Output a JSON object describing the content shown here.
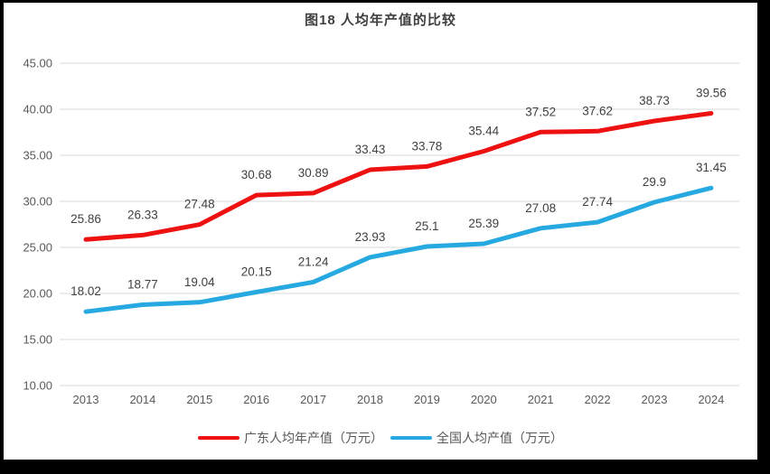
{
  "chart_data": {
    "type": "line",
    "title": "图18 人均年产值的比较",
    "categories": [
      "2013",
      "2014",
      "2015",
      "2016",
      "2017",
      "2018",
      "2019",
      "2020",
      "2021",
      "2022",
      "2023",
      "2024"
    ],
    "series": [
      {
        "name": "广东人均年产值（万元）",
        "color": "#ee1111",
        "values": [
          25.86,
          26.33,
          27.48,
          30.68,
          30.89,
          33.43,
          33.78,
          35.44,
          37.52,
          37.62,
          38.73,
          39.56
        ]
      },
      {
        "name": "全国人均产值（万元）",
        "color": "#25a9e0",
        "values": [
          18.02,
          18.77,
          19.04,
          20.15,
          21.24,
          23.93,
          25.1,
          25.39,
          27.08,
          27.74,
          29.9,
          31.45
        ]
      }
    ],
    "ylim": [
      10,
      45
    ],
    "y_step": 5,
    "y_tick_labels": [
      "45.00",
      "40.00",
      "35.00",
      "30.00",
      "25.00",
      "20.00",
      "15.00",
      "10.00"
    ],
    "grid": true,
    "legend_position": "bottom",
    "colors": {
      "gridline": "#d9d9d9",
      "axis_text": "#595959",
      "data_label_text": "#404040",
      "title_text": "#3f3f3f",
      "background": "#ffffff",
      "frame": "#000000"
    },
    "xlabel": "",
    "ylabel": ""
  }
}
